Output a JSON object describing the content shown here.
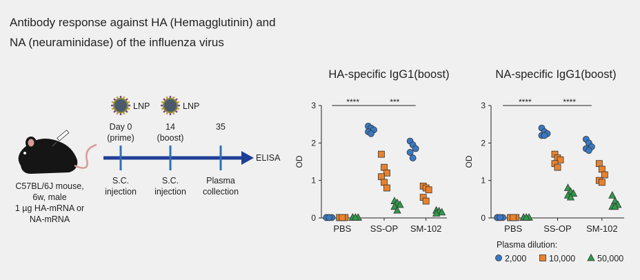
{
  "header": {
    "title": [
      "Antibody response against HA (Hemagglutinin) and",
      "NA (neuraminidase) of the influenza virus"
    ]
  },
  "diagram": {
    "mouse_caption": [
      "C57BL/6J mouse,",
      "6w, male",
      "1 µg HA-mRNA or",
      "NA-mRNA"
    ],
    "endpoint": "ELISA",
    "steps": [
      {
        "lnp": "LNP",
        "day": [
          "Day 0",
          "(prime)"
        ],
        "event": [
          "S.C.",
          "injection"
        ]
      },
      {
        "lnp": "LNP",
        "day": [
          "14",
          "(boost)"
        ],
        "event": [
          "S.C.",
          "injection"
        ]
      },
      {
        "day": [
          "35"
        ],
        "event": [
          "Plasma",
          "collection"
        ]
      }
    ]
  },
  "chart_data": [
    {
      "type": "dot",
      "title": "HA-specific IgG1(boost)",
      "y_label": "OD",
      "categories": [
        "PBS",
        "SS-OP",
        "SM-102"
      ],
      "ylim": [
        0,
        3
      ],
      "yticks": [
        0,
        1,
        2,
        3
      ],
      "annotations": [
        "****",
        "***"
      ],
      "series": [
        {
          "color": "#3a78c2",
          "marker": "circle",
          "values": [
            [
              0.01,
              0.01,
              0.01,
              0.01,
              0.01
            ],
            [
              2.45,
              2.4,
              2.35,
              2.3,
              2.25
            ],
            [
              2.05,
              1.95,
              1.85,
              1.75,
              1.6
            ]
          ]
        },
        {
          "color": "#e8822e",
          "marker": "square",
          "values": [
            [
              0.01,
              0.01,
              0.01,
              0.01,
              0.01
            ],
            [
              1.7,
              1.35,
              1.2,
              1.1,
              0.95,
              0.8
            ],
            [
              0.85,
              0.8,
              0.75,
              0.55,
              0.45
            ]
          ]
        },
        {
          "color": "#2e9a4a",
          "marker": "triangle",
          "values": [
            [
              0.01,
              0.01,
              0.01,
              0.01,
              0.01
            ],
            [
              0.45,
              0.4,
              0.35,
              0.3,
              0.2
            ],
            [
              0.2,
              0.18,
              0.15,
              0.12
            ]
          ]
        }
      ]
    },
    {
      "type": "dot",
      "title": "NA-specific IgG1(boost)",
      "y_label": "OD",
      "categories": [
        "PBS",
        "SS-OP",
        "SM-102"
      ],
      "ylim": [
        0,
        3
      ],
      "yticks": [
        0,
        1,
        2,
        3
      ],
      "annotations": [
        "****",
        "****"
      ],
      "legend_title": "Plasma dilution:",
      "series": [
        {
          "name": "2,000",
          "color": "#3a78c2",
          "marker": "circle",
          "values": [
            [
              0.01,
              0.01,
              0.01,
              0.01,
              0.01
            ],
            [
              2.4,
              2.3,
              2.25,
              2.2,
              2.2
            ],
            [
              2.1,
              2.0,
              1.9,
              1.85,
              1.8
            ]
          ]
        },
        {
          "name": "10,000",
          "color": "#e8822e",
          "marker": "square",
          "values": [
            [
              0.01,
              0.01,
              0.01,
              0.01,
              0.01
            ],
            [
              1.7,
              1.6,
              1.55,
              1.45,
              1.35
            ],
            [
              1.45,
              1.3,
              1.15,
              1.0,
              0.95
            ]
          ]
        },
        {
          "name": "50,000",
          "color": "#2e9a4a",
          "marker": "triangle",
          "values": [
            [
              0.01,
              0.01,
              0.01,
              0.01,
              0.01
            ],
            [
              0.8,
              0.7,
              0.65,
              0.6,
              0.55
            ],
            [
              0.6,
              0.45,
              0.35,
              0.3,
              0.3
            ]
          ]
        }
      ]
    }
  ]
}
